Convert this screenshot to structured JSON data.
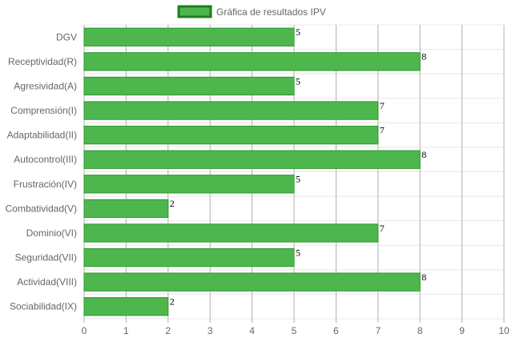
{
  "chart_data": {
    "type": "bar",
    "orientation": "horizontal",
    "categories": [
      "DGV",
      "Receptividad(R)",
      "Agresividad(A)",
      "Comprensión(I)",
      "Adaptabilidad(II)",
      "Autocontrol(III)",
      "Frustración(IV)",
      "Combatividad(V)",
      "Dominio(VI)",
      "Seguridad(VII)",
      "Actividad(VIII)",
      "Sociabilidad(IX)"
    ],
    "series": [
      {
        "name": "Gráfica de resultados IPV",
        "values": [
          5,
          8,
          5,
          7,
          7,
          8,
          5,
          2,
          7,
          5,
          8,
          2
        ]
      }
    ],
    "xlim": [
      0,
      10
    ],
    "x_ticks": [
      "0",
      "1",
      "2",
      "3",
      "4",
      "5",
      "6",
      "7",
      "8",
      "9",
      "10"
    ],
    "grid": true,
    "legend_position": "top",
    "data_labels": true,
    "colors": {
      "bar_fill": "#4db64d",
      "bar_stroke": "#2e9a2e",
      "legend_stroke": "#1e7d1e",
      "grid_vertical": "#b0b0b0",
      "grid_horizontal": "#e8e8e8"
    }
  }
}
